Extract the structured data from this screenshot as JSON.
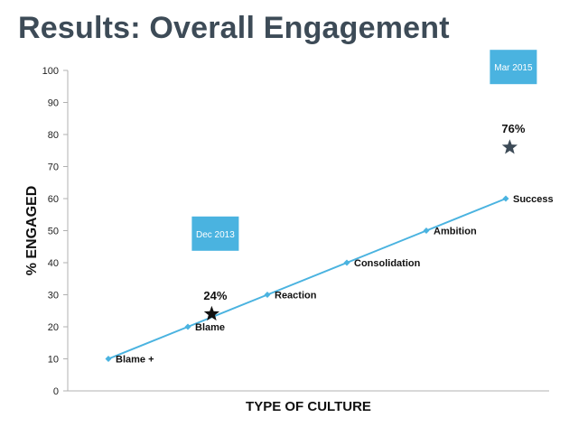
{
  "title": "Results: Overall Engagement",
  "chart_data": {
    "type": "line",
    "xlabel": "TYPE OF CULTURE",
    "ylabel": "% ENGAGED",
    "ylim": [
      0,
      100
    ],
    "yticks": [
      0,
      10,
      20,
      30,
      40,
      50,
      60,
      70,
      80,
      90,
      100
    ],
    "grid": false,
    "series": [
      {
        "categories": [
          "Blame +",
          "Blame",
          "Reaction",
          "Consolidation",
          "Ambition",
          "Success"
        ],
        "values": [
          10,
          20,
          30,
          40,
          50,
          60
        ],
        "color": "#4ab3e0"
      }
    ],
    "annotations": [
      {
        "label": "Dec 2013",
        "value_label": "24%",
        "x_index": 1.3,
        "y": 24,
        "marker": "star",
        "marker_color": "#111111"
      },
      {
        "label": "Mar 2015",
        "value_label": "76%",
        "x_index": 5.05,
        "y": 76,
        "marker": "star",
        "marker_color": "#3d4b57"
      }
    ],
    "colors": {
      "annotation_box": "#4ab3e0",
      "axis": "#b0b0b0",
      "title": "#3d4b57"
    }
  }
}
